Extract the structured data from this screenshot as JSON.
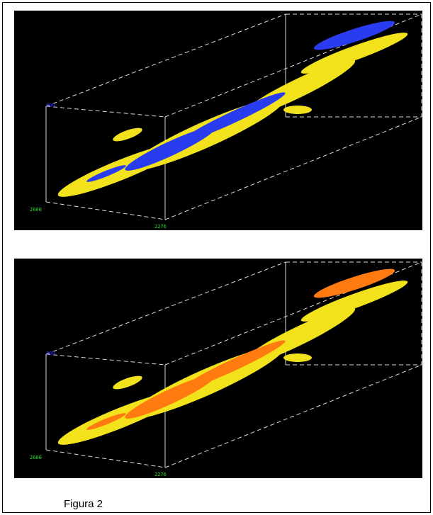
{
  "figure": {
    "panels": [
      {
        "labels": {
          "vertical": "800",
          "depth": "2600",
          "horizontal": "2276"
        }
      },
      {
        "labels": {
          "vertical": "800",
          "depth": "2600",
          "horizontal": "2276"
        }
      }
    ],
    "caption": "Figura 2"
  }
}
